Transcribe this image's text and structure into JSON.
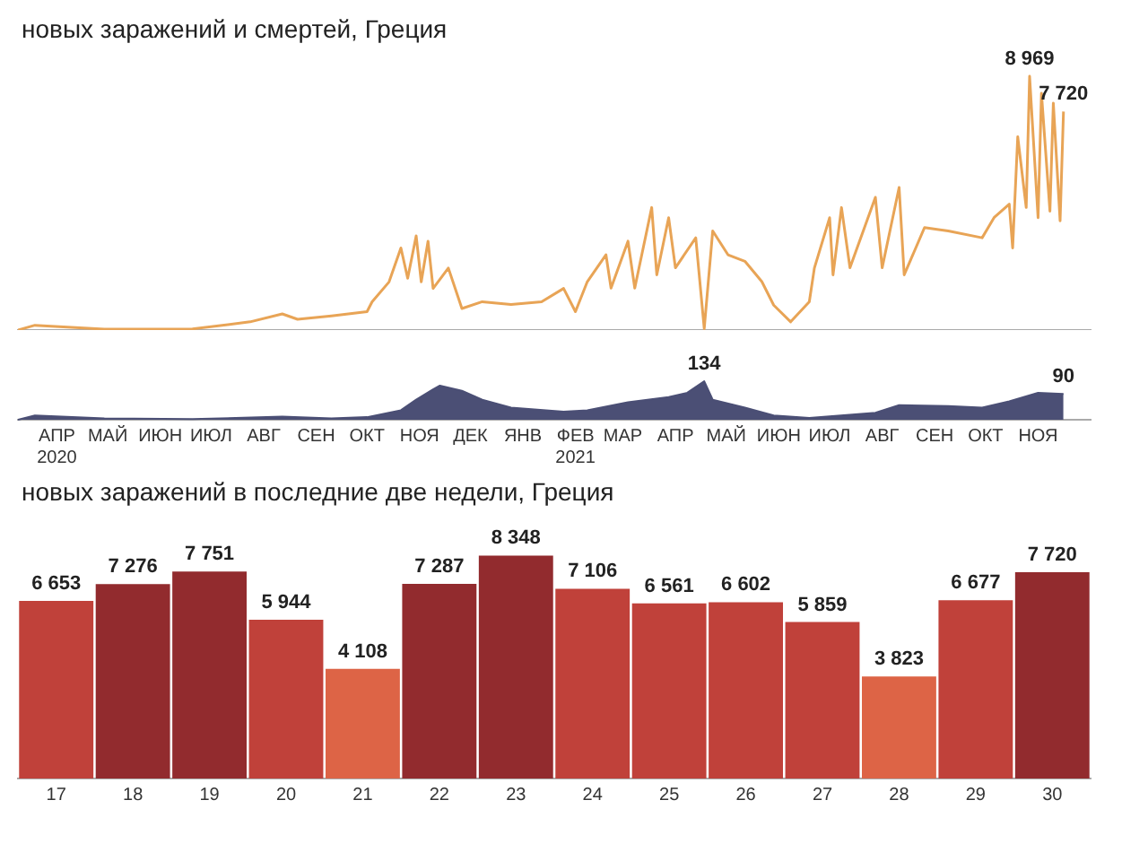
{
  "chart_data": [
    {
      "type": "line",
      "title": "новых заражений и смертей, Греция",
      "tick_labels": false,
      "grid": false,
      "legend": false,
      "xlim": [
        "2020-03-23",
        "2021-12-16"
      ],
      "series": [
        {
          "color": "#e8a456",
          "x": [
            "2020-03-23",
            "2020-04-02",
            "2020-05-13",
            "2020-07-04",
            "2020-08-07",
            "2020-08-26",
            "2020-09-04",
            "2020-09-24",
            "2020-10-15",
            "2020-10-18",
            "2020-10-28",
            "2020-11-04",
            "2020-11-08",
            "2020-11-13",
            "2020-11-16",
            "2020-11-20",
            "2020-11-23",
            "2020-12-02",
            "2020-12-10",
            "2020-12-22",
            "2021-01-08",
            "2021-01-26",
            "2021-02-08",
            "2021-02-15",
            "2021-02-22",
            "2021-03-05",
            "2021-03-08",
            "2021-03-18",
            "2021-03-22",
            "2021-04-01",
            "2021-04-04",
            "2021-04-11",
            "2021-04-15",
            "2021-04-27",
            "2021-05-02",
            "2021-05-07",
            "2021-05-16",
            "2021-05-26",
            "2021-06-05",
            "2021-06-12",
            "2021-06-22",
            "2021-07-03",
            "2021-07-06",
            "2021-07-15",
            "2021-07-17",
            "2021-07-22",
            "2021-07-27",
            "2021-08-11",
            "2021-08-15",
            "2021-08-25",
            "2021-08-28",
            "2021-09-09",
            "2021-09-23",
            "2021-10-13",
            "2021-10-20",
            "2021-10-29",
            "2021-10-31",
            "2021-11-03",
            "2021-11-08",
            "2021-11-10",
            "2021-11-15",
            "2021-11-17",
            "2021-11-22",
            "2021-11-24",
            "2021-11-28",
            "2021-11-30"
          ],
          "values": [
            0,
            170,
            30,
            40,
            290,
            570,
            380,
            500,
            650,
            1000,
            1700,
            2900,
            1830,
            3330,
            1700,
            3140,
            1470,
            2190,
            760,
            1000,
            900,
            1000,
            1470,
            650,
            1710,
            2660,
            1480,
            3140,
            1480,
            4330,
            1950,
            3970,
            2200,
            3260,
            50,
            3500,
            2660,
            2430,
            1710,
            880,
            290,
            1000,
            2190,
            3970,
            1950,
            4330,
            2200,
            4690,
            2200,
            5040,
            1950,
            3620,
            3500,
            3260,
            3970,
            4450,
            2900,
            6830,
            4330,
            8969,
            3970,
            8370,
            4200,
            8020,
            3860,
            7720
          ],
          "value_labels": [
            null,
            null,
            null,
            null,
            null,
            null,
            null,
            null,
            null,
            null,
            null,
            null,
            null,
            null,
            null,
            null,
            null,
            null,
            null,
            null,
            null,
            null,
            null,
            null,
            null,
            null,
            null,
            null,
            null,
            null,
            null,
            null,
            null,
            null,
            null,
            null,
            null,
            null,
            null,
            null,
            null,
            null,
            null,
            null,
            null,
            null,
            null,
            null,
            null,
            null,
            null,
            null,
            null,
            null,
            null,
            null,
            null,
            null,
            null,
            "8 969",
            null,
            null,
            null,
            null,
            null,
            "7 720"
          ]
        }
      ]
    },
    {
      "type": "area",
      "tick_labels": "x",
      "grid": false,
      "legend": false,
      "xlim": [
        "2020-03-23",
        "2021-12-16"
      ],
      "xticks": [
        {
          "value": "2020-04-15",
          "label": "АПР\n2020"
        },
        {
          "value": "2020-05-15",
          "label": "МАЙ"
        },
        {
          "value": "2020-06-15",
          "label": "ИЮН"
        },
        {
          "value": "2020-07-15",
          "label": "ИЮЛ"
        },
        {
          "value": "2020-08-15",
          "label": "АВГ"
        },
        {
          "value": "2020-09-15",
          "label": "СЕН"
        },
        {
          "value": "2020-10-15",
          "label": "ОКТ"
        },
        {
          "value": "2020-11-15",
          "label": "НОЯ"
        },
        {
          "value": "2020-12-15",
          "label": "ДЕК"
        },
        {
          "value": "2021-01-15",
          "label": "ЯНВ"
        },
        {
          "value": "2021-02-15",
          "label": "ФЕВ\n2021"
        },
        {
          "value": "2021-03-15",
          "label": "МАР"
        },
        {
          "value": "2021-04-15",
          "label": "АПР"
        },
        {
          "value": "2021-05-15",
          "label": "МАЙ"
        },
        {
          "value": "2021-06-15",
          "label": "ИЮН"
        },
        {
          "value": "2021-07-15",
          "label": "ИЮЛ"
        },
        {
          "value": "2021-08-15",
          "label": "АВГ"
        },
        {
          "value": "2021-09-15",
          "label": "СЕН"
        },
        {
          "value": "2021-10-15",
          "label": "ОКТ"
        },
        {
          "value": "2021-11-15",
          "label": "НОЯ"
        }
      ],
      "series": [
        {
          "color": "#4b4f75",
          "x": [
            "2020-03-23",
            "2020-04-02",
            "2020-05-13",
            "2020-07-04",
            "2020-08-26",
            "2020-09-24",
            "2020-10-15",
            "2020-11-04",
            "2020-11-13",
            "2020-11-23",
            "2020-11-27",
            "2020-12-10",
            "2020-12-22",
            "2021-01-08",
            "2021-02-08",
            "2021-02-22",
            "2021-03-18",
            "2021-04-11",
            "2021-04-22",
            "2021-05-02",
            "2021-05-07",
            "2021-05-26",
            "2021-06-12",
            "2021-07-03",
            "2021-08-11",
            "2021-08-25",
            "2021-09-23",
            "2021-10-13",
            "2021-10-29",
            "2021-11-15",
            "2021-11-30"
          ],
          "values": [
            0,
            15,
            5,
            2,
            11,
            5,
            9,
            33,
            70,
            106,
            119,
            101,
            70,
            42,
            28,
            33,
            61,
            79,
            94,
            134,
            70,
            42,
            15,
            6,
            24,
            51,
            48,
            42,
            64,
            94,
            90
          ],
          "value_labels": [
            null,
            null,
            null,
            null,
            null,
            null,
            null,
            null,
            null,
            null,
            null,
            null,
            null,
            null,
            null,
            null,
            null,
            null,
            null,
            "134",
            null,
            null,
            null,
            null,
            null,
            null,
            null,
            null,
            null,
            null,
            "90"
          ]
        }
      ]
    },
    {
      "type": "bar",
      "title": "новых заражений в последние две недели, Греция",
      "tick_labels": "x",
      "grid": false,
      "legend": false,
      "categories": [
        "17",
        "18",
        "19",
        "20",
        "21",
        "22",
        "23",
        "24",
        "25",
        "26",
        "27",
        "28",
        "29",
        "30"
      ],
      "values": [
        6653,
        7276,
        7751,
        5944,
        4108,
        7287,
        8348,
        7106,
        6561,
        6602,
        5859,
        3823,
        6677,
        7720
      ],
      "value_labels": [
        "6 653",
        "7 276",
        "7 751",
        "5 944",
        "4 108",
        "7 287",
        "8 348",
        "7 106",
        "6 561",
        "6 602",
        "5 859",
        "3 823",
        "6 677",
        "7 720"
      ],
      "colors": [
        "#c0413a",
        "#922b2e",
        "#922b2e",
        "#c0413a",
        "#dd6446",
        "#922b2e",
        "#922b2e",
        "#c0413a",
        "#c0413a",
        "#c0413a",
        "#c0413a",
        "#dd6446",
        "#c0413a",
        "#922b2e"
      ]
    }
  ]
}
